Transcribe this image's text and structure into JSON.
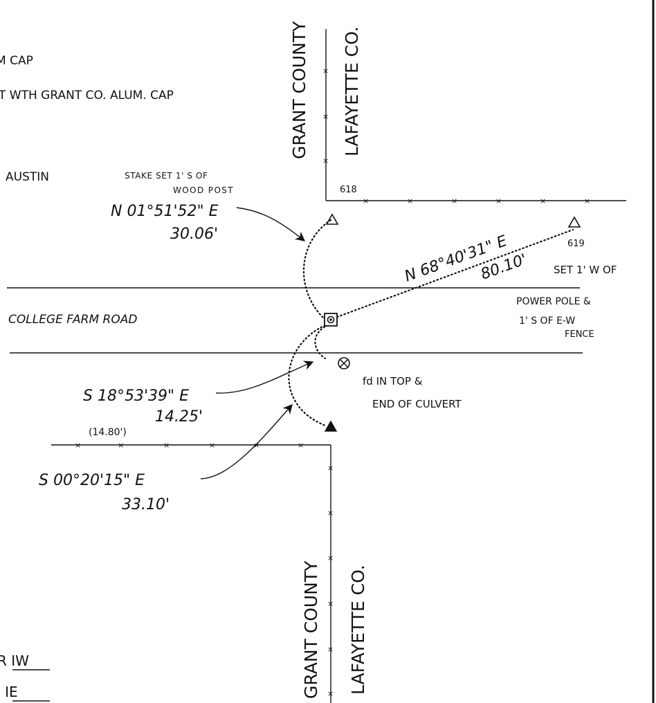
{
  "legend": {
    "line1": "M CAP",
    "line2": "T WTH GRANT CO. ALUM. CAP",
    "line3": "AUSTIN"
  },
  "county_lines": {
    "west_top": "GRANT COUNTY",
    "east_top": "LAFAYETTE CO.",
    "west_bottom": "GRANT COUNTY",
    "east_bottom": "LAFAYETTE CO."
  },
  "road": {
    "name": "COLLEGE FARM ROAD"
  },
  "corners": {
    "c618": "618",
    "c619": "619"
  },
  "notes": {
    "stake_line1": "STAKE SET 1' S OF",
    "stake_line2": "WOOD POST",
    "set_line1": "SET 1' W OF",
    "set_line2": "POWER POLE &",
    "set_line3": "1' S OF E-W",
    "set_line4": "FENCE",
    "found_line1": "fd IN TOP &",
    "found_line2": "END OF CULVERT",
    "fence_measure": "(14.80')"
  },
  "ties": {
    "north_bearing": "N 01°51'52\" E",
    "north_distance": "30.06'",
    "east_bearing": "N 68°40'31\" E",
    "east_distance": "80.10'",
    "culvert_bearing": "S 18°53'39\" E",
    "culvert_distance": "14.25'",
    "south_bearing": "S 00°20'15\" E",
    "south_distance": "33.10'"
  },
  "range": {
    "west": "R IW",
    "east": ": IE"
  },
  "colors": {
    "ink": "#111111",
    "paper": "#ffffff"
  }
}
